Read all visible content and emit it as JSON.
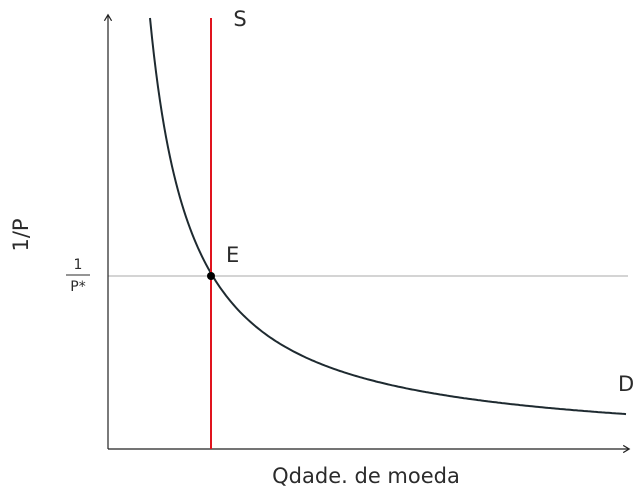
{
  "labels": {
    "supply": "S",
    "demand": "D",
    "equilibrium": "E",
    "y_axis": "1/P",
    "price_numerator": "1",
    "price_denominator": "P*",
    "x_axis": "Qdade. de moeda"
  }
}
